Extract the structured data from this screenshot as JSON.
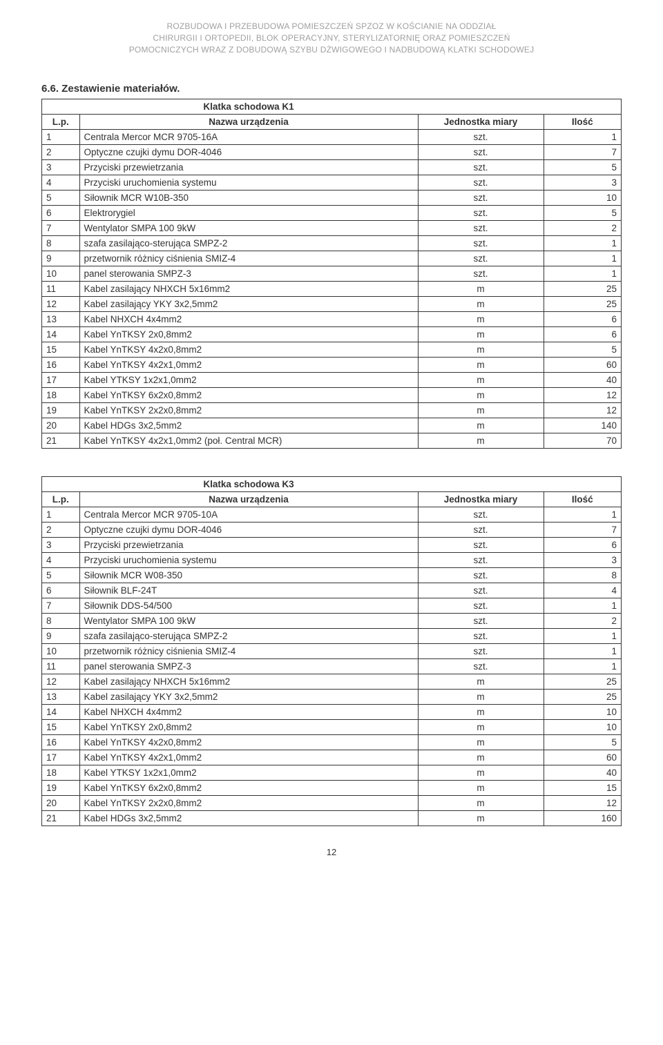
{
  "header": {
    "line1": "ROZBUDOWA I PRZEBUDOWA POMIESZCZEŃ SPZOZ W KOŚCIANIE NA ODDZIAŁ",
    "line2": "CHIRURGII I ORTOPEDII, BLOK OPERACYJNY, STERYLIZATORNIĘ ORAZ POMIESZCZEŃ",
    "line3": "POMOCNICZYCH WRAZ Z DOBUDOWĄ SZYBU DŻWIGOWEGO I NADBUDOWĄ KLATKI SCHODOWEJ"
  },
  "section_heading": "6.6. Zestawienie materiałów.",
  "columns": {
    "lp": "L.p.",
    "name": "Nazwa urządzenia",
    "unit": "Jednostka miary",
    "qty": "Ilość"
  },
  "table1": {
    "caption": "Klatka schodowa K1",
    "rows": [
      {
        "lp": "1",
        "name": "Centrala Mercor MCR 9705-16A",
        "unit": "szt.",
        "qty": "1"
      },
      {
        "lp": "2",
        "name": "Optyczne czujki dymu DOR-4046",
        "unit": "szt.",
        "qty": "7"
      },
      {
        "lp": "3",
        "name": "Przyciski przewietrzania",
        "unit": "szt.",
        "qty": "5"
      },
      {
        "lp": "4",
        "name": "Przyciski uruchomienia systemu",
        "unit": "szt.",
        "qty": "3"
      },
      {
        "lp": "5",
        "name": "Siłownik MCR W10B-350",
        "unit": "szt.",
        "qty": "10"
      },
      {
        "lp": "6",
        "name": "Elektrorygiel",
        "unit": "szt.",
        "qty": "5"
      },
      {
        "lp": "7",
        "name": "Wentylator SMPA 100 9kW",
        "unit": "szt.",
        "qty": "2"
      },
      {
        "lp": "8",
        "name": "szafa zasilająco-sterująca SMPZ-2",
        "unit": "szt.",
        "qty": "1"
      },
      {
        "lp": "9",
        "name": "przetwornik różnicy ciśnienia SMIZ-4",
        "unit": "szt.",
        "qty": "1"
      },
      {
        "lp": "10",
        "name": "panel sterowania SMPZ-3",
        "unit": "szt.",
        "qty": "1"
      },
      {
        "lp": "11",
        "name": "Kabel zasilający NHXCH 5x16mm2",
        "unit": "m",
        "qty": "25"
      },
      {
        "lp": "12",
        "name": "Kabel zasilający YKY 3x2,5mm2",
        "unit": "m",
        "qty": "25"
      },
      {
        "lp": "13",
        "name": "Kabel NHXCH 4x4mm2",
        "unit": "m",
        "qty": "6"
      },
      {
        "lp": "14",
        "name": "Kabel YnTKSY 2x0,8mm2",
        "unit": "m",
        "qty": "6"
      },
      {
        "lp": "15",
        "name": "Kabel YnTKSY 4x2x0,8mm2",
        "unit": "m",
        "qty": "5"
      },
      {
        "lp": "16",
        "name": "Kabel YnTKSY 4x2x1,0mm2",
        "unit": "m",
        "qty": "60"
      },
      {
        "lp": "17",
        "name": "Kabel YTKSY 1x2x1,0mm2",
        "unit": "m",
        "qty": "40"
      },
      {
        "lp": "18",
        "name": "Kabel YnTKSY 6x2x0,8mm2",
        "unit": "m",
        "qty": "12"
      },
      {
        "lp": "19",
        "name": "Kabel YnTKSY 2x2x0,8mm2",
        "unit": "m",
        "qty": "12"
      },
      {
        "lp": "20",
        "name": "Kabel HDGs 3x2,5mm2",
        "unit": "m",
        "qty": "140"
      },
      {
        "lp": "21",
        "name": "Kabel YnTKSY 4x2x1,0mm2 (poł. Central MCR)",
        "unit": "m",
        "qty": "70"
      }
    ]
  },
  "table2": {
    "caption": "Klatka schodowa K3",
    "rows": [
      {
        "lp": "1",
        "name": "Centrala Mercor MCR 9705-10A",
        "unit": "szt.",
        "qty": "1"
      },
      {
        "lp": "2",
        "name": "Optyczne czujki dymu DOR-4046",
        "unit": "szt.",
        "qty": "7"
      },
      {
        "lp": "3",
        "name": "Przyciski przewietrzania",
        "unit": "szt.",
        "qty": "6"
      },
      {
        "lp": "4",
        "name": "Przyciski uruchomienia systemu",
        "unit": "szt.",
        "qty": "3"
      },
      {
        "lp": "5",
        "name": "Siłownik MCR W08-350",
        "unit": "szt.",
        "qty": "8"
      },
      {
        "lp": "6",
        "name": "Siłownik BLF-24T",
        "unit": "szt.",
        "qty": "4"
      },
      {
        "lp": "7",
        "name": "Siłownik DDS-54/500",
        "unit": "szt.",
        "qty": "1"
      },
      {
        "lp": "8",
        "name": "Wentylator SMPA 100 9kW",
        "unit": "szt.",
        "qty": "2"
      },
      {
        "lp": "9",
        "name": "szafa zasilająco-sterująca SMPZ-2",
        "unit": "szt.",
        "qty": "1"
      },
      {
        "lp": "10",
        "name": "przetwornik różnicy ciśnienia SMIZ-4",
        "unit": "szt.",
        "qty": "1"
      },
      {
        "lp": "11",
        "name": "panel sterowania SMPZ-3",
        "unit": "szt.",
        "qty": "1"
      },
      {
        "lp": "12",
        "name": "Kabel zasilający NHXCH 5x16mm2",
        "unit": "m",
        "qty": "25"
      },
      {
        "lp": "13",
        "name": "Kabel zasilający YKY 3x2,5mm2",
        "unit": "m",
        "qty": "25"
      },
      {
        "lp": "14",
        "name": "Kabel NHXCH 4x4mm2",
        "unit": "m",
        "qty": "10"
      },
      {
        "lp": "15",
        "name": "Kabel YnTKSY 2x0,8mm2",
        "unit": "m",
        "qty": "10"
      },
      {
        "lp": "16",
        "name": "Kabel YnTKSY 4x2x0,8mm2",
        "unit": "m",
        "qty": "5"
      },
      {
        "lp": "17",
        "name": "Kabel YnTKSY 4x2x1,0mm2",
        "unit": "m",
        "qty": "60"
      },
      {
        "lp": "18",
        "name": "Kabel YTKSY 1x2x1,0mm2",
        "unit": "m",
        "qty": "40"
      },
      {
        "lp": "19",
        "name": "Kabel YnTKSY 6x2x0,8mm2",
        "unit": "m",
        "qty": "15"
      },
      {
        "lp": "20",
        "name": "Kabel YnTKSY 2x2x0,8mm2",
        "unit": "m",
        "qty": "12"
      },
      {
        "lp": "21",
        "name": "Kabel HDGs 3x2,5mm2",
        "unit": "m",
        "qty": "160"
      }
    ]
  },
  "page_number": "12"
}
